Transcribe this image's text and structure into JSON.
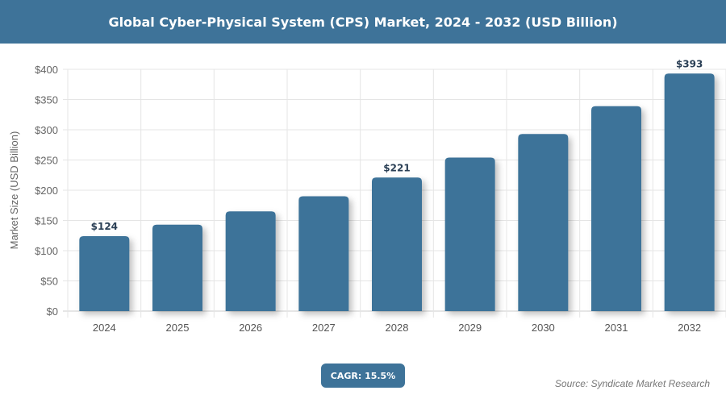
{
  "header": {
    "title": "Global Cyber-Physical System (CPS) Market, 2024 - 2032 (USD Billion)"
  },
  "chart_data": {
    "type": "bar",
    "title": "Global Cyber-Physical System (CPS) Market, 2024 - 2032 (USD Billion)",
    "xlabel": "",
    "ylabel": "Market Size (USD Billion)",
    "ylim": [
      0,
      400
    ],
    "yticks": [
      "$0",
      "$50",
      "$100",
      "$150",
      "$200",
      "$250",
      "$300",
      "$350",
      "$400"
    ],
    "categories": [
      "2024",
      "2025",
      "2026",
      "2027",
      "2028",
      "2029",
      "2030",
      "2031",
      "2032"
    ],
    "values": [
      124,
      143,
      165,
      190,
      221,
      254,
      293,
      339,
      393
    ],
    "data_labels": {
      "0": "$124",
      "4": "$221",
      "8": "$393"
    },
    "grid": true,
    "bar_color": "#3e7399"
  },
  "footer": {
    "cagr": "CAGR: 15.5%",
    "source": "Source: Syndicate Market Research"
  }
}
